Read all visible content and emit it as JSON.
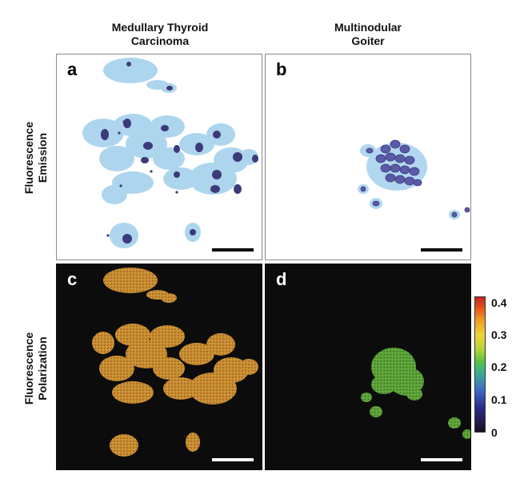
{
  "columns": {
    "left": "Medullary Thyroid\nCarcinoma",
    "right": "Multinodular\nGoiter"
  },
  "rows": {
    "top": "Fluorescence\nEmission",
    "bottom": "Fluorescence\nPolarization"
  },
  "panels": {
    "a": "a",
    "b": "b",
    "c": "c",
    "d": "d"
  },
  "colorbar": {
    "ticks": [
      "0.4",
      "0.3",
      "0.2",
      "0.1",
      "0"
    ],
    "colors": [
      "#1a0f24",
      "#2a2a8c",
      "#3e6fc7",
      "#5ac043",
      "#f1d433",
      "#f0a02a",
      "#c4231c"
    ]
  },
  "colors": {
    "cytoplasm": "#a9d3ee",
    "nucleus_a": "#3d3a7a",
    "nucleus_b": "#5a5aa8",
    "polarization_high": "#e0a23a",
    "polarization_mid": "#6fbf43",
    "background_dark": "#0c0c0c"
  }
}
